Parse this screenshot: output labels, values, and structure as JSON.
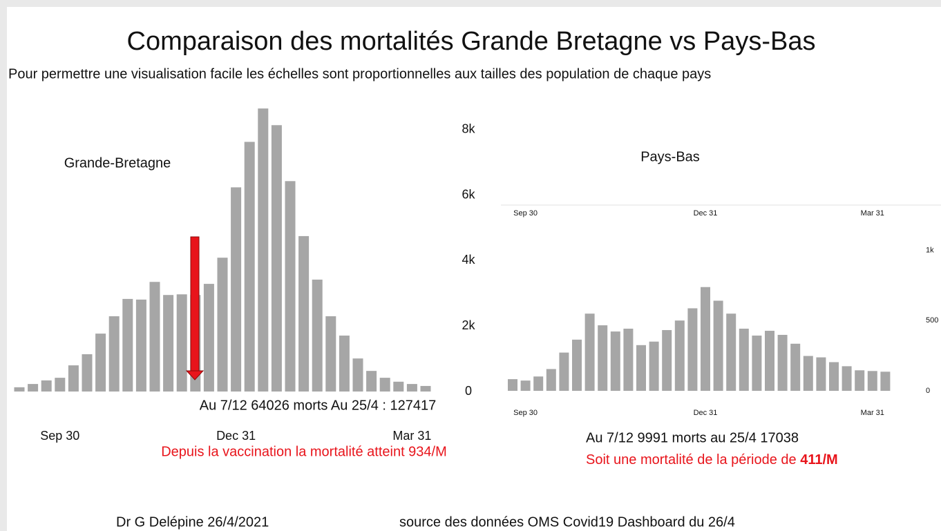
{
  "title": "Comparaison des mortalités Grande Bretagne vs Pays-Bas",
  "subtitle": "Pour permettre une visualisation facile les échelles sont proportionnelles aux tailles des population de chaque pays",
  "footer": [
    "Dr G Delépine 26/4/2021",
    "source des données  OMS Covid19 Dashboard du 26/4"
  ],
  "chart_data": [
    {
      "type": "bar",
      "title": "Grande-Bretagne",
      "color": "#a6a6a6",
      "categories": [
        null,
        null,
        null,
        "Sep 30",
        null,
        null,
        null,
        null,
        null,
        null,
        null,
        null,
        null,
        null,
        null,
        null,
        "Dec 31",
        null,
        null,
        null,
        null,
        null,
        null,
        null,
        null,
        null,
        null,
        null,
        null,
        "Mar 31",
        null
      ],
      "values": [
        130,
        230,
        340,
        420,
        800,
        1140,
        1770,
        2300,
        2830,
        2810,
        3350,
        2950,
        2970,
        2950,
        3290,
        4090,
        6240,
        7630,
        8650,
        8140,
        6430,
        4750,
        3420,
        2300,
        1710,
        1010,
        630,
        420,
        300,
        230,
        170
      ],
      "ylim": [
        0,
        8800
      ],
      "yticks": [
        0,
        {
          "value": 2000,
          "label": "2k"
        },
        {
          "value": 4000,
          "label": "4k"
        },
        {
          "value": 6000,
          "label": "6k"
        },
        {
          "value": 8000,
          "label": "8k"
        }
      ],
      "annotations": [
        "Au 7/12 64026 morts Au 25/4 : 127417",
        "Depuis la vaccination la mortalité atteint  934/M"
      ]
    },
    {
      "type": "bar",
      "title": "Pays-Bas",
      "color": "#a6a6a6",
      "categories": [
        null,
        "Sep 30",
        null,
        null,
        null,
        null,
        null,
        null,
        null,
        null,
        null,
        null,
        null,
        null,
        null,
        "Dec 31",
        null,
        null,
        null,
        null,
        null,
        null,
        null,
        null,
        null,
        null,
        null,
        null,
        "Mar 31",
        null
      ],
      "values": [
        83,
        73,
        102,
        155,
        272,
        364,
        549,
        466,
        422,
        442,
        325,
        350,
        432,
        500,
        587,
        738,
        641,
        549,
        442,
        393,
        427,
        398,
        335,
        248,
        238,
        204,
        175,
        146,
        141,
        136
      ],
      "ylim": [
        0,
        1100
      ],
      "yticks": [
        0,
        500,
        {
          "value": 1000,
          "label": "1k"
        }
      ],
      "annotations": [
        "Au 7/12 9991 morts au 25/4 17038",
        "Soit une mortalité de la période de ",
        "411/M"
      ]
    }
  ]
}
